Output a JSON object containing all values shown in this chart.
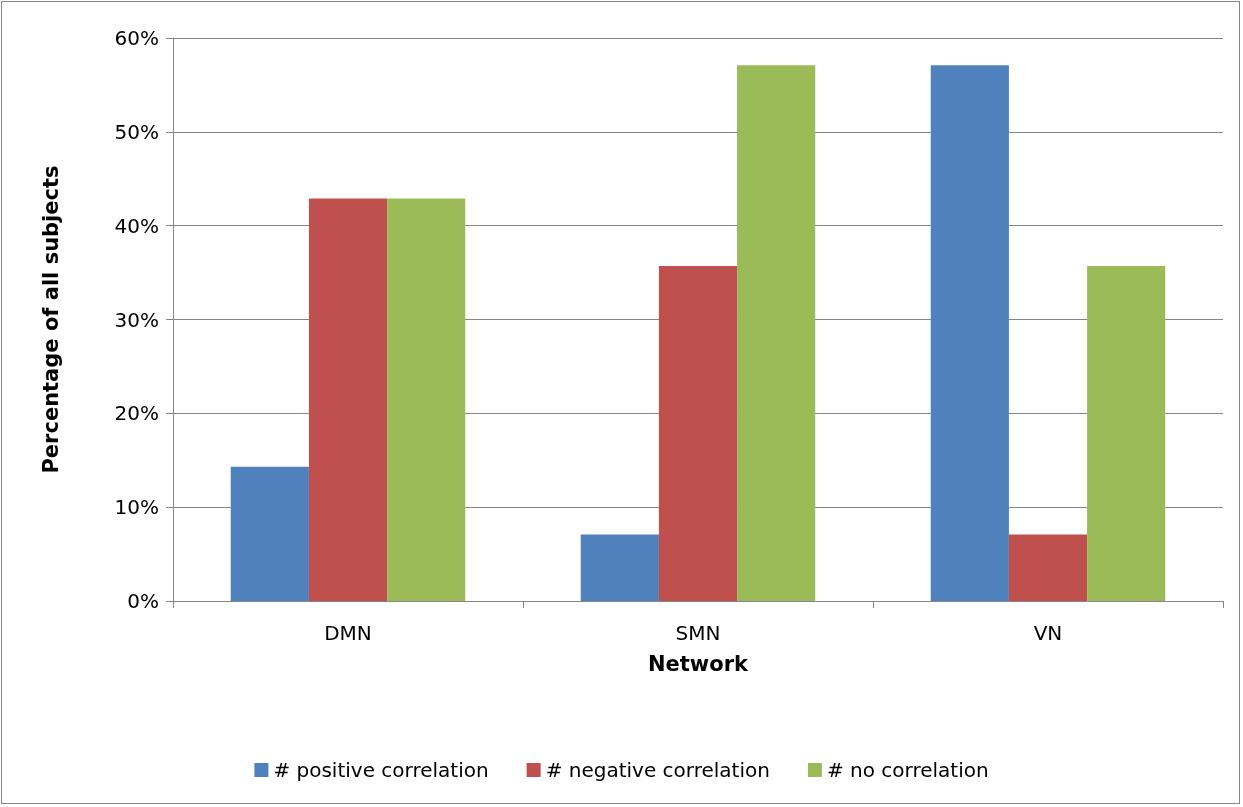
{
  "chart_data": {
    "type": "bar",
    "xlabel": "Network",
    "ylabel": "Percentage of all subjects",
    "categories": [
      "DMN",
      "SMN",
      "VN"
    ],
    "series": [
      {
        "name": "# positive correlation",
        "color": "#4f81bd",
        "values": [
          14.3,
          7.1,
          57.1
        ]
      },
      {
        "name": "# negative correlation",
        "color": "#c0504d",
        "values": [
          42.9,
          35.7,
          7.1
        ]
      },
      {
        "name": "# no correlation",
        "color": "#9bbb59",
        "values": [
          42.9,
          57.1,
          35.7
        ]
      }
    ],
    "ylim": [
      0,
      60
    ],
    "yticks": [
      {
        "value": 0,
        "label": "0%"
      },
      {
        "value": 10,
        "label": "10%"
      },
      {
        "value": 20,
        "label": "20%"
      },
      {
        "value": 30,
        "label": "30%"
      },
      {
        "value": 40,
        "label": "40%"
      },
      {
        "value": 50,
        "label": "50%"
      },
      {
        "value": 60,
        "label": "60%"
      }
    ],
    "grid": "y",
    "legend": "bottom"
  }
}
